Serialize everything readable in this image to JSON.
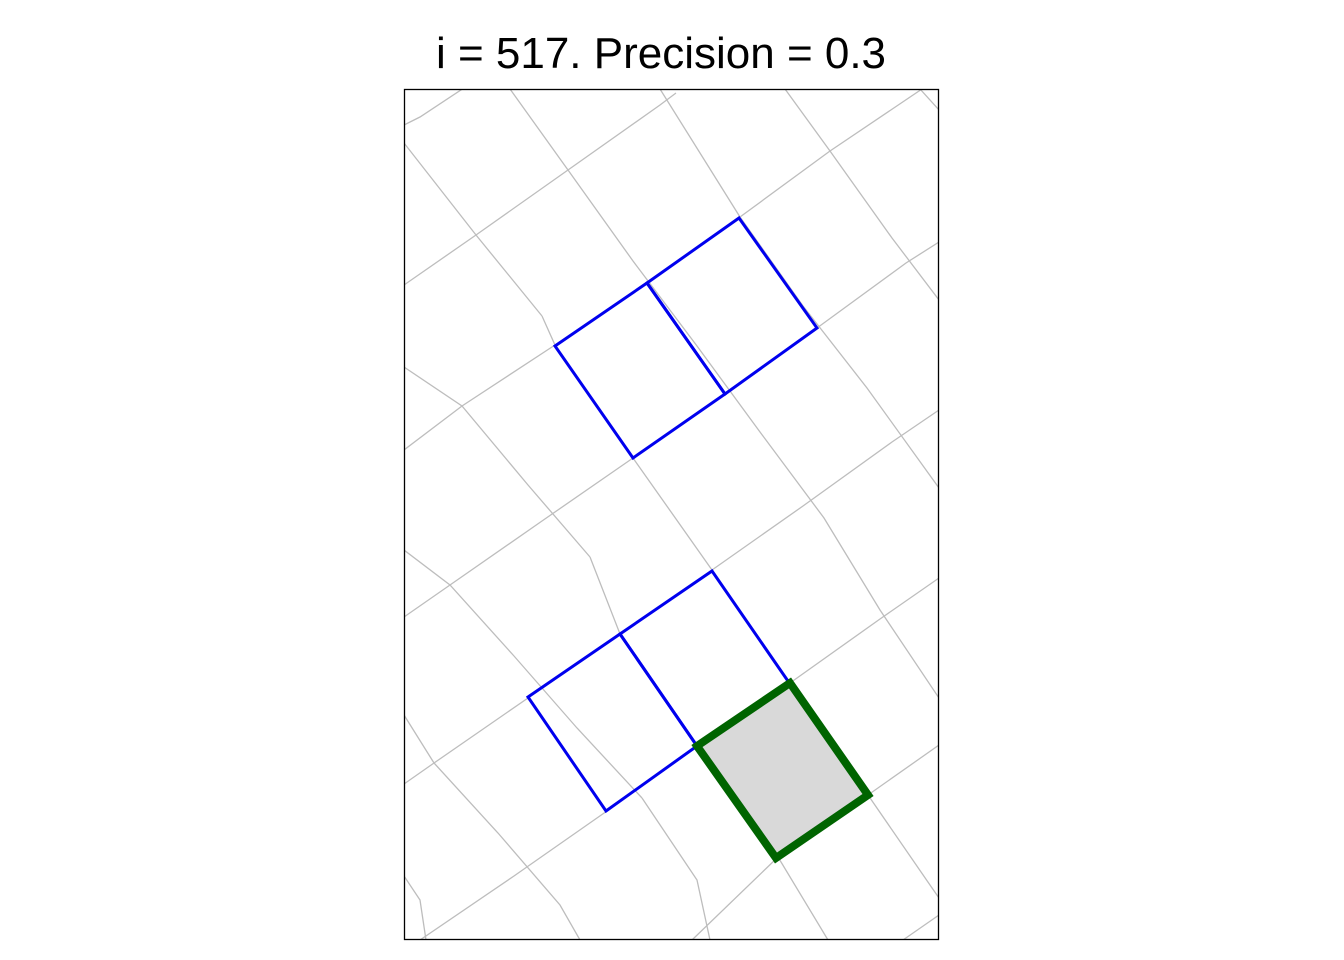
{
  "title": "i = 517. Precision = 0.3",
  "colors": {
    "grid": "#bdbdbd",
    "neighbor": "#0000ee",
    "current": "#006400",
    "current_fill": "#d9d9d9",
    "frame": "#000000",
    "background": "#ffffff"
  }
}
